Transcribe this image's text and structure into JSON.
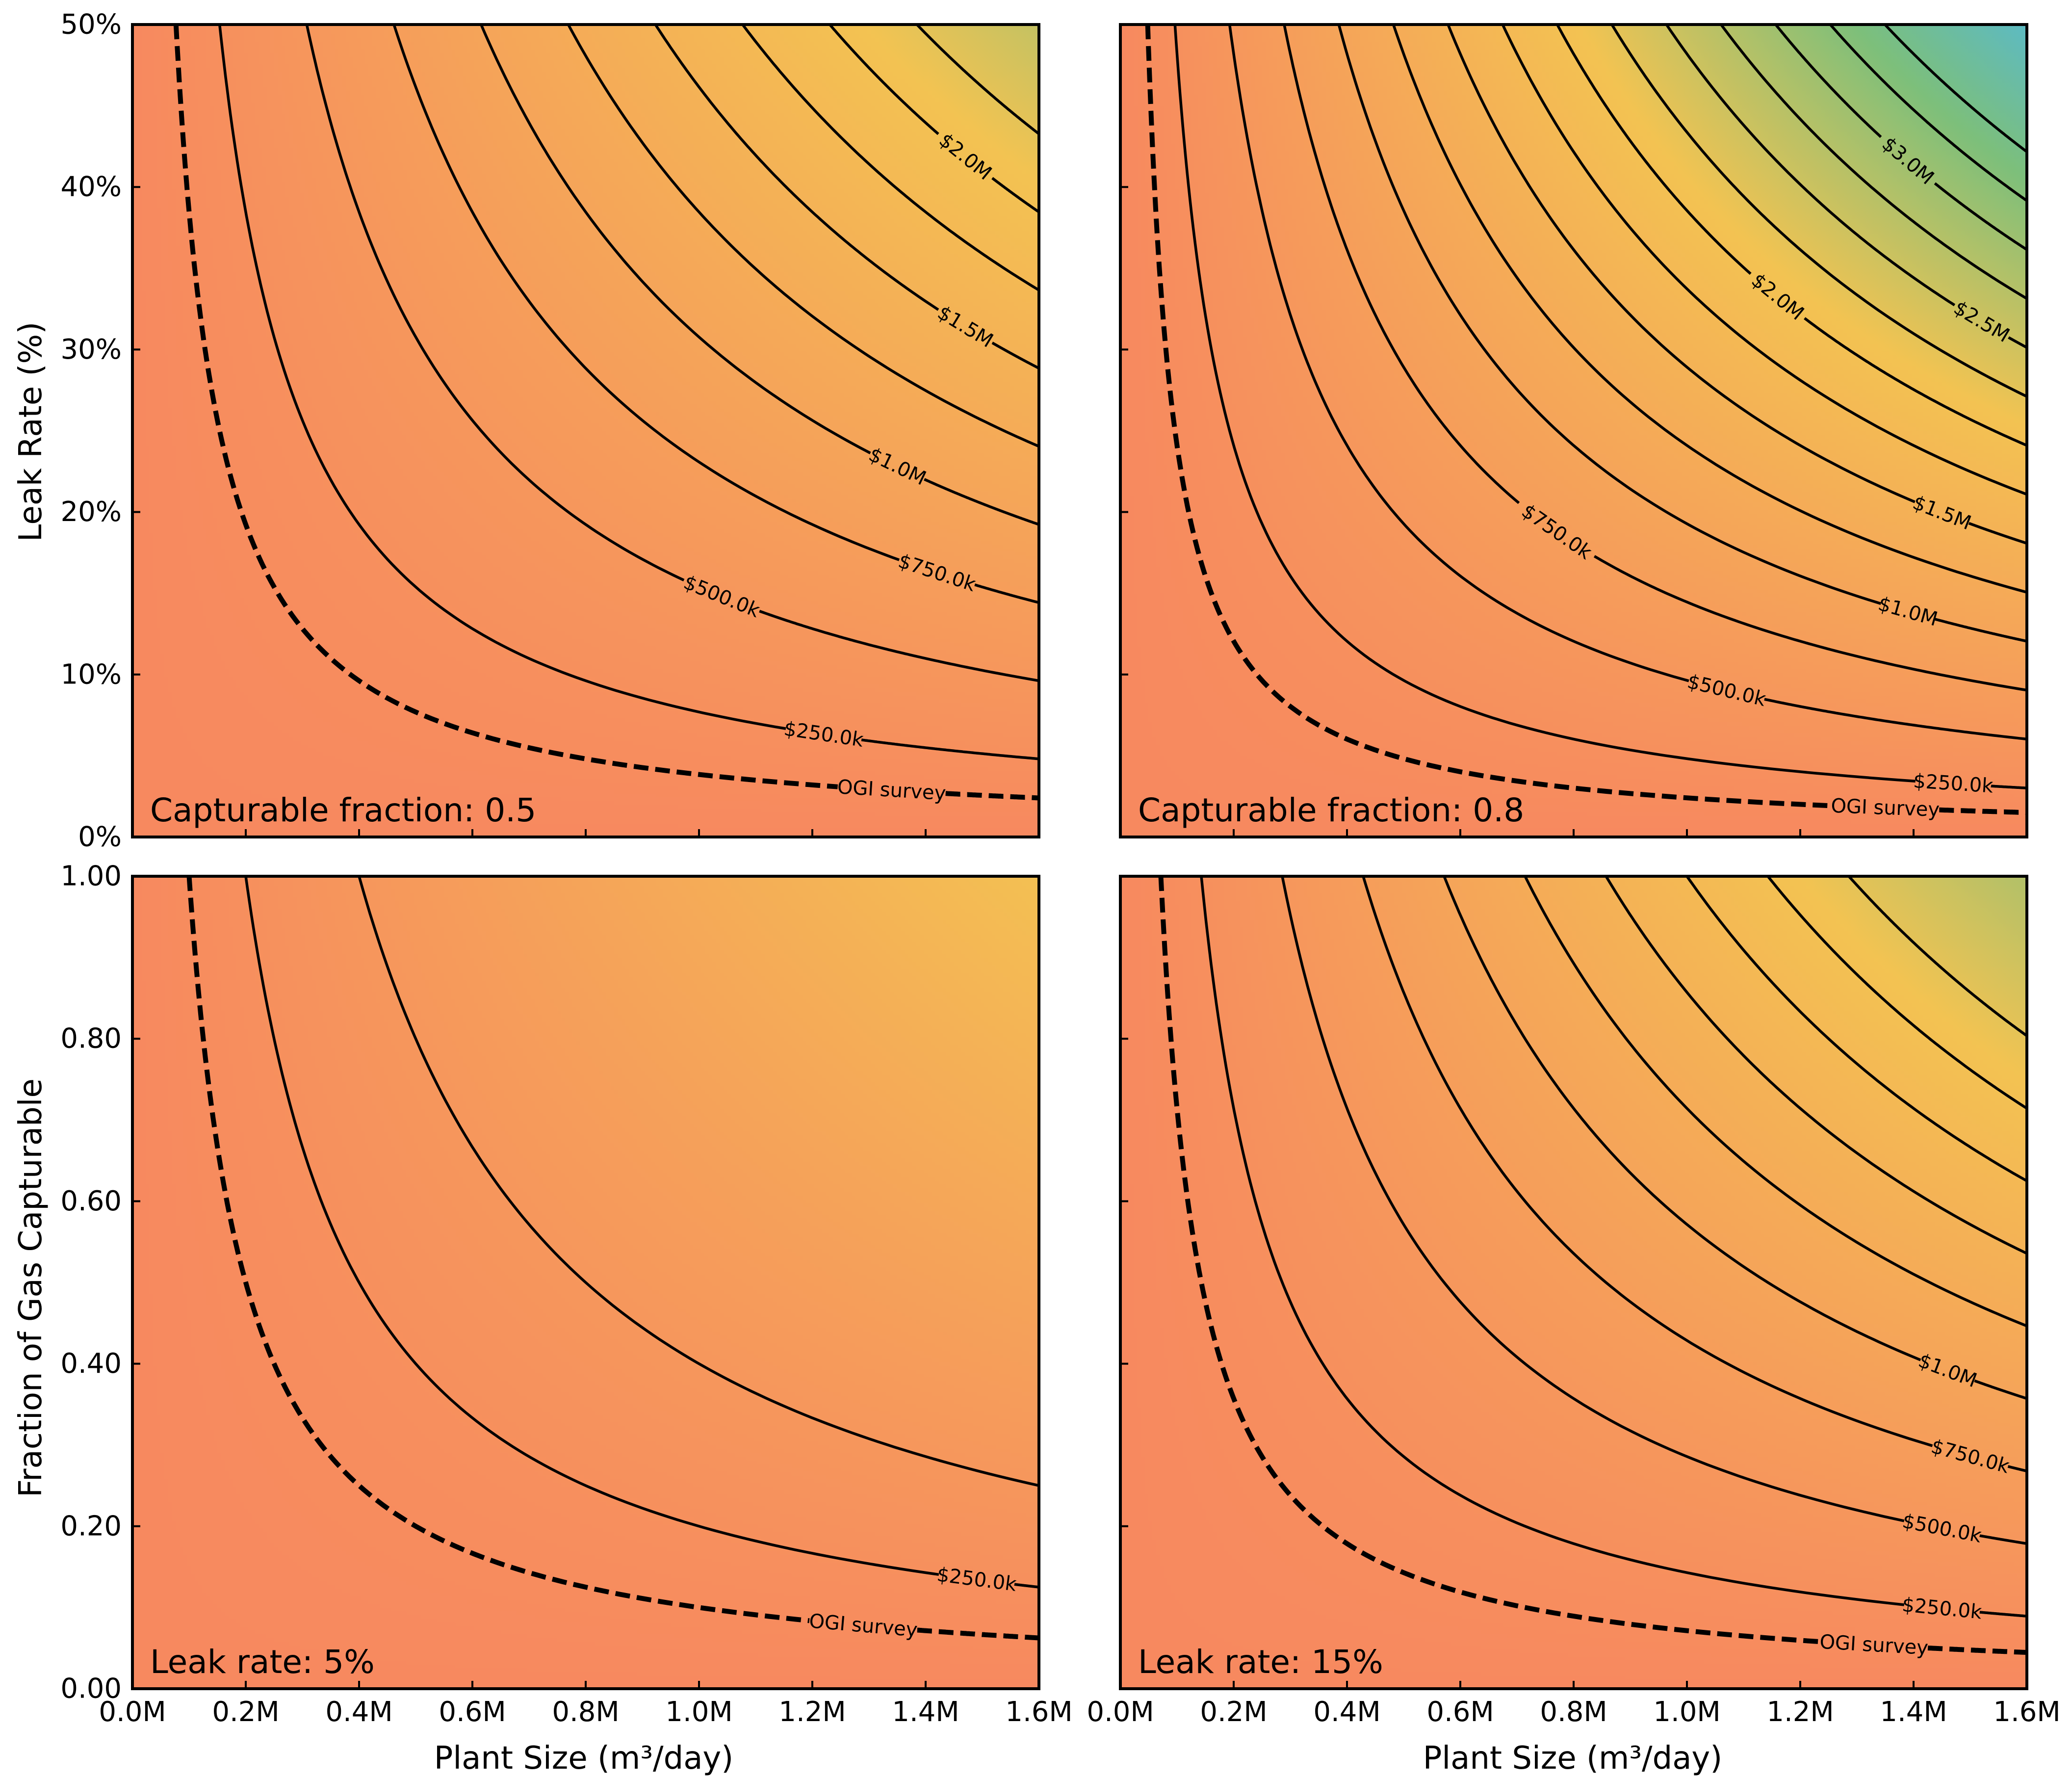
{
  "x_axis_label": "Plant Size (m³/day)",
  "colors": {
    "low": "#f7895f",
    "mid": "#f3c352",
    "high_green": "#7dbf7b",
    "high_teal": "#5bbac8",
    "line": "#000000"
  },
  "chart_data": [
    {
      "type": "contour",
      "panel": "top-left",
      "annotation": "Capturable fraction: 0.5",
      "ylabel": "Leak Rate (%)",
      "xlim": [
        0,
        1600000
      ],
      "ylim": [
        0,
        50
      ],
      "x_ticks": [
        0,
        200000,
        400000,
        600000,
        800000,
        1000000,
        1200000,
        1400000,
        1600000
      ],
      "x_tick_labels": [
        "0.0M",
        "0.2M",
        "0.4M",
        "0.6M",
        "0.8M",
        "1.0M",
        "1.2M",
        "1.4M",
        "1.6M"
      ],
      "y_ticks": [
        0,
        10,
        20,
        30,
        40,
        50
      ],
      "y_tick_labels": [
        "0%",
        "10%",
        "20%",
        "30%",
        "40%",
        "50%"
      ],
      "x_tick_labels_shown": false,
      "y_tick_labels_shown": true,
      "color_max": 2.6,
      "contour_levels": [
        0.25,
        0.5,
        0.75,
        1.0,
        1.25,
        1.5,
        1.75,
        2.0,
        2.25
      ],
      "contour_labels": [
        {
          "level": 0.25,
          "text": "$250.0k",
          "x": 1220000
        },
        {
          "level": 0.5,
          "text": "$500.0k",
          "x": 1040000
        },
        {
          "level": 0.75,
          "text": "$750.0k",
          "x": 1420000
        },
        {
          "level": 1.0,
          "text": "$1.0M",
          "x": 1350000
        },
        {
          "level": 1.5,
          "text": "$1.5M",
          "x": 1470000
        },
        {
          "level": 2.0,
          "text": "$2.0M",
          "x": 1470000
        }
      ],
      "ogi_label": "OGI survey",
      "ogi_label_x": 1340000
    },
    {
      "type": "contour",
      "panel": "top-right",
      "annotation": "Capturable fraction: 0.8",
      "ylabel": "",
      "xlim": [
        0,
        1600000
      ],
      "ylim": [
        0,
        50
      ],
      "x_ticks": [
        0,
        200000,
        400000,
        600000,
        800000,
        1000000,
        1200000,
        1400000,
        1600000
      ],
      "x_tick_labels": [
        "0.0M",
        "0.2M",
        "0.4M",
        "0.6M",
        "0.8M",
        "1.0M",
        "1.2M",
        "1.4M",
        "1.6M"
      ],
      "y_ticks": [
        0,
        10,
        20,
        30,
        40,
        50
      ],
      "y_tick_labels": [
        "0%",
        "10%",
        "20%",
        "30%",
        "40%",
        "50%"
      ],
      "x_tick_labels_shown": false,
      "y_tick_labels_shown": false,
      "color_max": 4.15,
      "contour_levels": [
        0.25,
        0.5,
        0.75,
        1.0,
        1.25,
        1.5,
        1.75,
        2.0,
        2.25,
        2.5,
        2.75,
        3.0,
        3.25,
        3.5
      ],
      "contour_labels": [
        {
          "level": 0.25,
          "text": "$250.0k",
          "x": 1470000
        },
        {
          "level": 0.5,
          "text": "$500.0k",
          "x": 1070000
        },
        {
          "level": 0.75,
          "text": "$750.0k",
          "x": 770000
        },
        {
          "level": 1.0,
          "text": "$1.0M",
          "x": 1390000
        },
        {
          "level": 1.5,
          "text": "$1.5M",
          "x": 1450000
        },
        {
          "level": 2.0,
          "text": "$2.0M",
          "x": 1160000
        },
        {
          "level": 2.5,
          "text": "$2.5M",
          "x": 1520000
        },
        {
          "level": 3.0,
          "text": "$3.0M",
          "x": 1390000
        }
      ],
      "ogi_label": "OGI survey",
      "ogi_label_x": 1350000
    },
    {
      "type": "contour",
      "panel": "bottom-left",
      "annotation": "Leak rate: 5%",
      "ylabel": "Fraction of Gas Capturable",
      "xlabel": "Plant Size (m³/day)",
      "xlim": [
        0,
        1600000
      ],
      "ylim": [
        0,
        1
      ],
      "x_ticks": [
        0,
        200000,
        400000,
        600000,
        800000,
        1000000,
        1200000,
        1400000,
        1600000
      ],
      "x_tick_labels": [
        "0.0M",
        "0.2M",
        "0.4M",
        "0.6M",
        "0.8M",
        "1.0M",
        "1.2M",
        "1.4M",
        "1.6M"
      ],
      "y_ticks": [
        0,
        0.2,
        0.4,
        0.6,
        0.8,
        1.0
      ],
      "y_tick_labels": [
        "0.00",
        "0.20",
        "0.40",
        "0.60",
        "0.80",
        "1.00"
      ],
      "x_tick_labels_shown": true,
      "y_tick_labels_shown": true,
      "color_max": 2.0,
      "contour_levels": [
        0.25,
        0.5
      ],
      "contour_labels": [
        {
          "level": 0.25,
          "text": "$250.0k",
          "x": 1490000
        }
      ],
      "ogi_label": "OGI survey",
      "ogi_label_x": 1290000
    },
    {
      "type": "contour",
      "panel": "bottom-right",
      "annotation": "Leak rate: 15%",
      "ylabel": "",
      "xlabel": "Plant Size (m³/day)",
      "xlim": [
        0,
        1600000
      ],
      "ylim": [
        0,
        1
      ],
      "x_ticks": [
        0,
        200000,
        400000,
        600000,
        800000,
        1000000,
        1200000,
        1400000,
        1600000
      ],
      "x_tick_labels": [
        "0.0M",
        "0.2M",
        "0.4M",
        "0.6M",
        "0.8M",
        "1.0M",
        "1.2M",
        "1.4M",
        "1.6M"
      ],
      "y_ticks": [
        0,
        0.2,
        0.4,
        0.6,
        0.8,
        1.0
      ],
      "y_tick_labels": [
        "0.00",
        "0.20",
        "0.40",
        "0.60",
        "0.80",
        "1.00"
      ],
      "x_tick_labels_shown": true,
      "y_tick_labels_shown": false,
      "color_max": 2.8,
      "contour_levels": [
        0.25,
        0.5,
        0.75,
        1.0,
        1.25,
        1.5,
        1.75,
        2.0,
        2.25
      ],
      "contour_labels": [
        {
          "level": 0.25,
          "text": "$250.0k",
          "x": 1450000
        },
        {
          "level": 0.5,
          "text": "$500.0k",
          "x": 1450000
        },
        {
          "level": 0.75,
          "text": "$750.0k",
          "x": 1500000
        },
        {
          "level": 1.0,
          "text": "$1.0M",
          "x": 1460000
        }
      ],
      "ogi_label": "OGI survey",
      "ogi_label_x": 1330000
    }
  ]
}
